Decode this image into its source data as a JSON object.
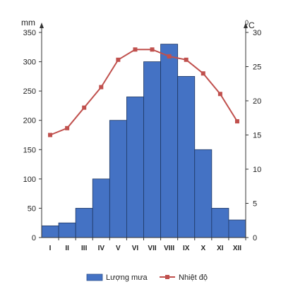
{
  "chart_data": {
    "type": "bar+line",
    "categories": [
      "I",
      "II",
      "III",
      "IV",
      "V",
      "VI",
      "VII",
      "VIII",
      "IX",
      "X",
      "XI",
      "XII"
    ],
    "series": [
      {
        "name": "Lượng mưa",
        "type": "bar",
        "axis": "left",
        "color": "#4472C4",
        "values": [
          20,
          25,
          50,
          100,
          200,
          240,
          300,
          330,
          275,
          150,
          50,
          30
        ]
      },
      {
        "name": "Nhiệt độ",
        "type": "line",
        "axis": "right",
        "color": "#C0504D",
        "values": [
          15,
          16,
          19,
          22,
          26,
          27.5,
          27.5,
          26.5,
          26,
          24,
          21,
          17
        ]
      }
    ],
    "y_left": {
      "unit": "mm",
      "ylim": [
        0,
        350
      ],
      "ticks": [
        "0",
        "50",
        "100",
        "150",
        "200",
        "250",
        "300",
        "350"
      ]
    },
    "y_right": {
      "unit_sup": "0",
      "unit": "C",
      "ylim": [
        0,
        30
      ],
      "ticks": [
        "0",
        "5",
        "10",
        "15",
        "20",
        "25",
        "30"
      ]
    },
    "grid": false,
    "legend_position": "bottom"
  }
}
